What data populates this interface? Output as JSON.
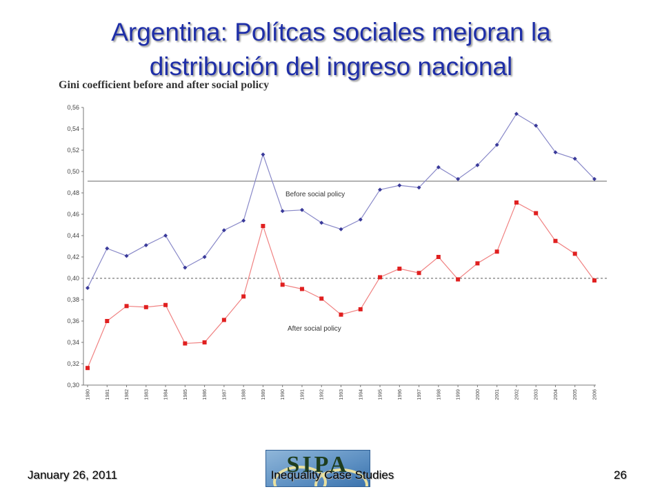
{
  "slide": {
    "title_line1": "Argentina: Polítcas sociales mejoran la",
    "title_line2": "distribución del ingreso nacional",
    "footer_date": "January 26, 2011",
    "footer_center": "Inequality Case Studies",
    "page_number": "26",
    "logo_text": "SIPA"
  },
  "chart_data": {
    "type": "line",
    "title": "Gini coefficient before and after social policy",
    "xlabel": "",
    "ylabel": "",
    "ylim": [
      0.3,
      0.56
    ],
    "yticks": [
      "0,30",
      "0,32",
      "0,34",
      "0,36",
      "0,38",
      "0,40",
      "0,42",
      "0,44",
      "0,46",
      "0,48",
      "0,50",
      "0,52",
      "0,54",
      "0,56"
    ],
    "categories": [
      "1980",
      "1981",
      "1982",
      "1983",
      "1984",
      "1985",
      "1986",
      "1987",
      "1988",
      "1989",
      "1990",
      "1991",
      "1992",
      "1993",
      "1994",
      "1995",
      "1996",
      "1997",
      "1998",
      "1999",
      "2000",
      "2001",
      "2002",
      "2003",
      "2004",
      "2005",
      "2006"
    ],
    "series": [
      {
        "name": "Before social policy",
        "color": "#3a3a9a",
        "marker": "diamond",
        "values": [
          0.391,
          0.428,
          0.421,
          0.431,
          0.44,
          0.41,
          0.42,
          0.445,
          0.454,
          0.516,
          0.463,
          0.464,
          0.452,
          0.446,
          0.455,
          0.483,
          0.487,
          0.485,
          0.504,
          0.493,
          0.506,
          0.525,
          0.554,
          0.543,
          0.518,
          0.512,
          0.493
        ]
      },
      {
        "name": "After social policy",
        "color": "#e02020",
        "marker": "square",
        "values": [
          0.316,
          0.36,
          0.374,
          0.373,
          0.375,
          0.339,
          0.34,
          0.361,
          0.383,
          0.449,
          0.394,
          0.39,
          0.381,
          0.366,
          0.371,
          0.401,
          0.409,
          0.405,
          0.42,
          0.399,
          0.414,
          0.425,
          0.471,
          0.461,
          0.435,
          0.423,
          0.398
        ]
      }
    ],
    "reference_lines": [
      {
        "value": 0.491,
        "style": "solid"
      },
      {
        "value": 0.4,
        "style": "dashed"
      }
    ],
    "grid": false
  }
}
